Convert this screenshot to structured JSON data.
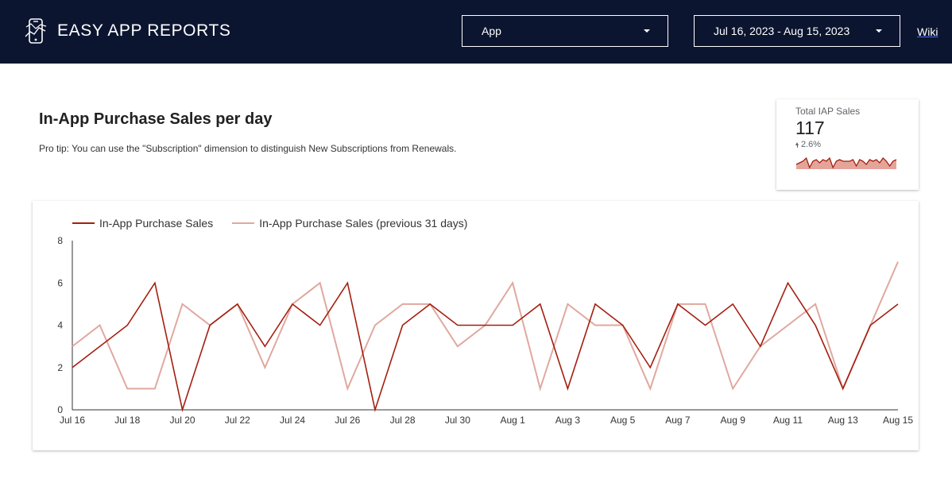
{
  "header": {
    "logo_icon": "phone-chart-icon",
    "app_title": "EASY APP REPORTS",
    "app_dropdown": "App",
    "date_dropdown": "Jul 16, 2023 - Aug 15, 2023",
    "wiki_link": "Wiki",
    "background_color": "#0b1530"
  },
  "main": {
    "title": "In-App Purchase Sales per day",
    "tip": "Pro tip: You can use the \"Subscription\" dimension to distinguish New Subscriptions from Renewals."
  },
  "kpi": {
    "label": "Total IAP Sales",
    "value": "117",
    "delta": "2.6%",
    "delta_direction": "up",
    "sparkline_color": "#a31f0f",
    "sparkline_fill": "#e4a49a"
  },
  "chart_data": {
    "type": "line",
    "x": [
      "Jul 16",
      "Jul 17",
      "Jul 18",
      "Jul 19",
      "Jul 20",
      "Jul 21",
      "Jul 22",
      "Jul 23",
      "Jul 24",
      "Jul 25",
      "Jul 26",
      "Jul 27",
      "Jul 28",
      "Jul 29",
      "Jul 30",
      "Jul 31",
      "Aug 1",
      "Aug 2",
      "Aug 3",
      "Aug 4",
      "Aug 5",
      "Aug 6",
      "Aug 7",
      "Aug 8",
      "Aug 9",
      "Aug 10",
      "Aug 11",
      "Aug 12",
      "Aug 13",
      "Aug 14",
      "Aug 15"
    ],
    "tick_labels": [
      "Jul 16",
      "Jul 18",
      "Jul 20",
      "Jul 22",
      "Jul 24",
      "Jul 26",
      "Jul 28",
      "Jul 30",
      "Aug 1",
      "Aug 3",
      "Aug 5",
      "Aug 7",
      "Aug 9",
      "Aug 11",
      "Aug 13",
      "Aug 15"
    ],
    "y_ticks": [
      "0",
      "2",
      "4",
      "6",
      "8"
    ],
    "ylim": [
      0,
      8
    ],
    "grid": false,
    "legend_position": "top-left",
    "series": [
      {
        "name": "In-App Purchase Sales",
        "color": "#a31f0f",
        "values": [
          2,
          3,
          4,
          6,
          0,
          4,
          5,
          3,
          5,
          4,
          6,
          0,
          4,
          5,
          4,
          4,
          4,
          5,
          1,
          5,
          4,
          2,
          5,
          4,
          5,
          3,
          6,
          4,
          1,
          4,
          5
        ]
      },
      {
        "name": "In-App Purchase Sales (previous 31 days)",
        "color": "#e0a89f",
        "values": [
          3,
          4,
          1,
          1,
          5,
          4,
          5,
          2,
          5,
          6,
          1,
          4,
          5,
          5,
          3,
          4,
          6,
          1,
          5,
          4,
          4,
          1,
          5,
          5,
          1,
          3,
          4,
          5,
          1,
          4,
          7
        ]
      }
    ]
  }
}
